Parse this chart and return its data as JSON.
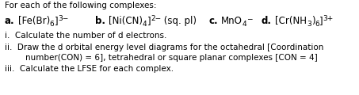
{
  "background_color": "#ffffff",
  "title_line": "For each of the following complexes:",
  "line_i": "i.  Calculate the number of d electrons.",
  "line_ii_1": "ii.  Draw the d orbital energy level diagrams for the octahedral [Coordination",
  "line_ii_2": "        number(CON) = 6], tetrahedral or square planar complexes [CON = 4]",
  "line_iii": "iii.  Calculate the LFSE for each complex.",
  "font_size_title": 7.5,
  "font_size_body": 7.5,
  "font_size_complex": 8.5,
  "font_size_small": 6.5,
  "fig_width": 4.53,
  "fig_height": 1.2,
  "dpi": 100
}
